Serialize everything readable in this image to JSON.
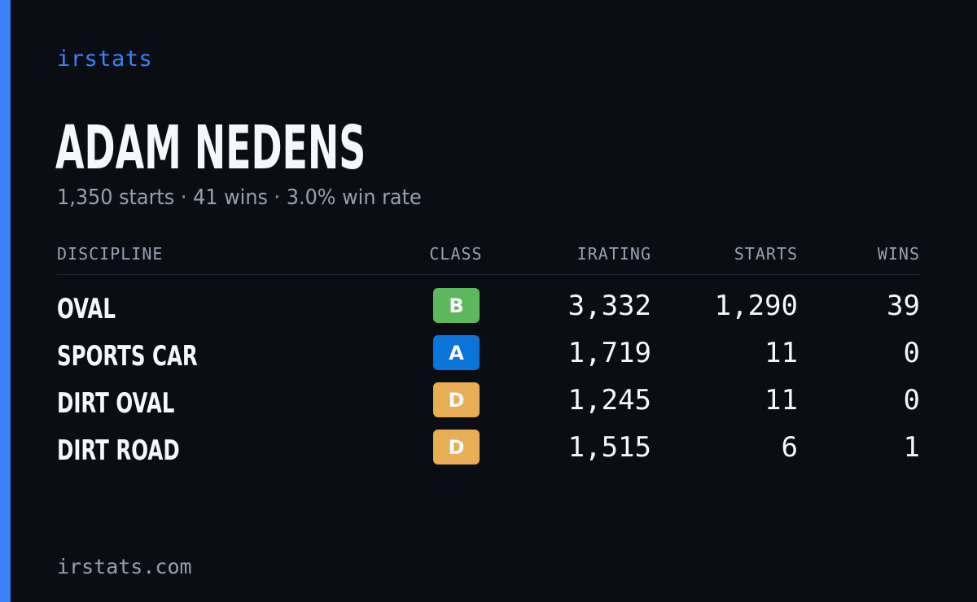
{
  "brand": "irstats",
  "driver": {
    "name": "ADAM NEDENS",
    "summary": "1,350 starts · 41 wins · 3.0% win rate"
  },
  "table": {
    "headers": {
      "discipline": "DISCIPLINE",
      "class": "CLASS",
      "irating": "IRATING",
      "starts": "STARTS",
      "wins": "WINS"
    },
    "rows": [
      {
        "discipline": "OVAL",
        "class": "B",
        "class_color": "#5cb85c",
        "irating": "3,332",
        "starts": "1,290",
        "wins": "39"
      },
      {
        "discipline": "SPORTS CAR",
        "class": "A",
        "class_color": "#0b74d8",
        "irating": "1,719",
        "starts": "11",
        "wins": "0"
      },
      {
        "discipline": "DIRT OVAL",
        "class": "D",
        "class_color": "#e8ad55",
        "irating": "1,245",
        "starts": "11",
        "wins": "0"
      },
      {
        "discipline": "DIRT ROAD",
        "class": "D",
        "class_color": "#e8ad55",
        "irating": "1,515",
        "starts": "6",
        "wins": "1"
      }
    ]
  },
  "footer": "irstats.com",
  "colors": {
    "background": "#0a0d14",
    "accent": "#3b82f6",
    "muted_text": "#97a0b0"
  }
}
